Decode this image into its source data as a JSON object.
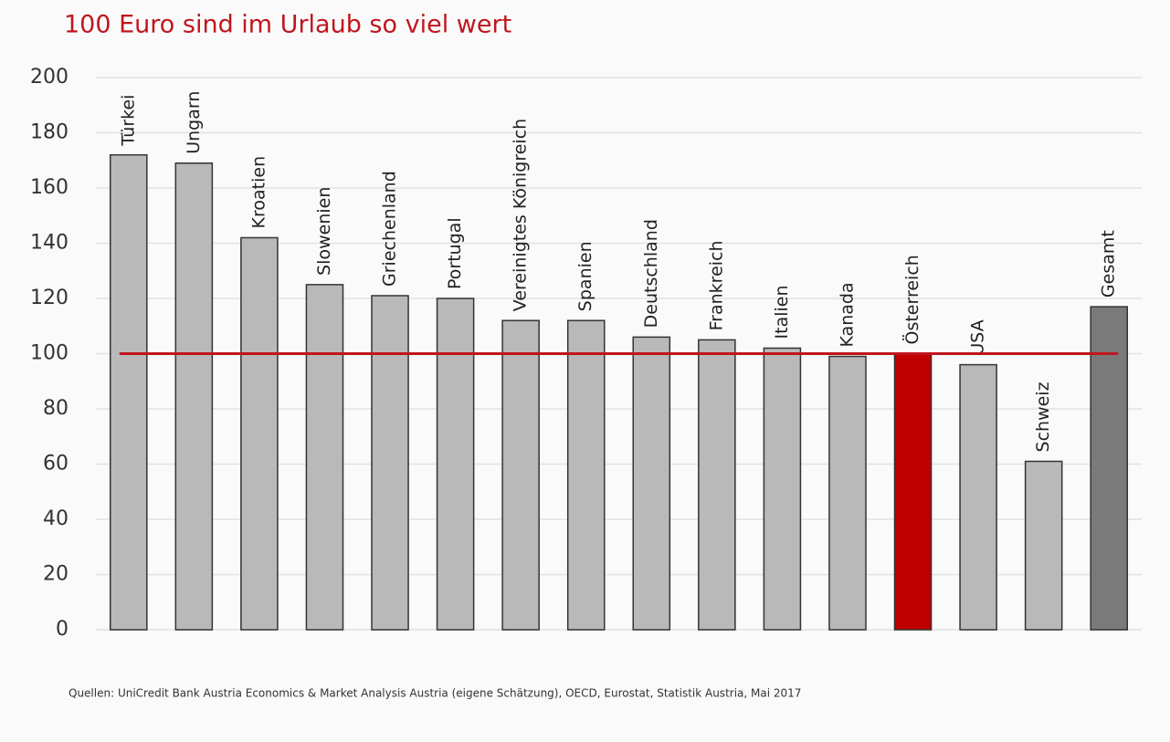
{
  "chart_data": {
    "type": "bar",
    "title": "100 Euro sind im Urlaub so viel wert",
    "source": "Quellen: UniCredit Bank Austria Economics & Market Analysis Austria (eigene Schätzung), OECD, Eurostat, Statistik Austria, Mai 2017",
    "categories": [
      "Türkei",
      "Ungarn",
      "Kroatien",
      "Slowenien",
      "Griechenland",
      "Portugal",
      "Vereinigtes Königreich",
      "Spanien",
      "Deutschland",
      "Frankreich",
      "Italien",
      "Kanada",
      "Österreich",
      "USA",
      "Schweiz",
      "Gesamt"
    ],
    "values": [
      172,
      169,
      142,
      125,
      121,
      120,
      112,
      112,
      106,
      105,
      102,
      99,
      100,
      96,
      61,
      117
    ],
    "colors": [
      "#b9b9b9",
      "#b9b9b9",
      "#b9b9b9",
      "#b9b9b9",
      "#b9b9b9",
      "#b9b9b9",
      "#b9b9b9",
      "#b9b9b9",
      "#b9b9b9",
      "#b9b9b9",
      "#b9b9b9",
      "#b9b9b9",
      "#c00000",
      "#b9b9b9",
      "#b9b9b9",
      "#7a7a7a"
    ],
    "reference_line": 100,
    "reference_color": "#c0161e",
    "ylim": [
      0,
      200
    ],
    "yticks": [
      0,
      20,
      40,
      60,
      80,
      100,
      120,
      140,
      160,
      180,
      200
    ],
    "grid": true
  }
}
